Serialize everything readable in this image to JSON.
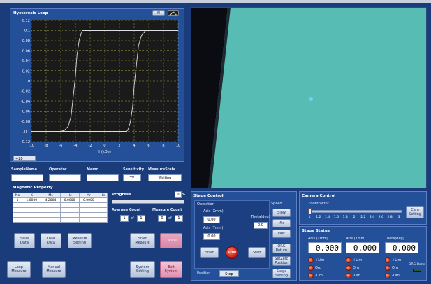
{
  "hysteresis": {
    "title": "Hysteresis Loop",
    "y_ticks": [
      "0.12",
      "0.1",
      "0.08",
      "0.06",
      "0.04",
      "0.02",
      "0",
      "-0.02",
      "-0.04",
      "-0.06",
      "-0.08",
      "-0.1",
      "-0.12"
    ],
    "x_ticks": [
      "-10",
      "-8",
      "-6",
      "-4",
      "-2",
      "0",
      "2",
      "4",
      "6",
      "8",
      "10"
    ],
    "xlabel": "H(kOe)",
    "zoom": "+28"
  },
  "chart_data": {
    "type": "line",
    "title": "Hysteresis Loop",
    "xlabel": "H(kOe)",
    "ylabel": "",
    "xlim": [
      -10,
      10
    ],
    "ylim": [
      -0.12,
      0.12
    ],
    "grid": true,
    "series": [
      {
        "x": [
          -10,
          -7,
          -6,
          -5.5,
          -5,
          -4.6,
          -4.3,
          -4,
          -3.8,
          -3.5,
          -3.2,
          -3,
          -2.5,
          -2,
          0,
          10
        ],
        "y": [
          -0.1,
          -0.1,
          -0.1,
          -0.098,
          -0.09,
          -0.07,
          -0.03,
          0.01,
          0.05,
          0.08,
          0.095,
          0.1,
          0.1,
          0.1,
          0.1,
          0.1
        ]
      },
      {
        "x": [
          10,
          7,
          6,
          5.5,
          5,
          4.6,
          4.3,
          4,
          3.8,
          3.5,
          3.2,
          3,
          2.5,
          2,
          0,
          -10
        ],
        "y": [
          0.1,
          0.1,
          0.1,
          0.098,
          0.09,
          0.07,
          0.03,
          -0.01,
          -0.05,
          -0.08,
          -0.095,
          -0.1,
          -0.1,
          -0.1,
          -0.1,
          -0.1
        ]
      }
    ]
  },
  "info": {
    "sample_label": "SampleName",
    "operator_label": "Operator",
    "memo_label": "Memo",
    "sensitivity_label": "Sensitivity",
    "sensitivity_value": "TV",
    "measure_state_label": "MeasureState",
    "measure_state_value": "Waiting"
  },
  "magnetic": {
    "title": "Magnetic Property",
    "headers": [
      "No",
      "K",
      "Ms",
      "Hc",
      "Mr",
      "Hk"
    ],
    "row": [
      "1",
      "1.0000",
      "4.2004",
      "0.0000",
      "0.0000",
      ""
    ],
    "progress_label": "Progress",
    "progress_value": "0",
    "progress_unit": "%",
    "avg_count_label": "Average Count",
    "avg_count_value": "1",
    "avg_of": "of",
    "avg_total": "1",
    "measure_count_label": "Measure Count",
    "measure_count_value": "0",
    "measure_of": "of",
    "measure_total": "1"
  },
  "buttons": {
    "save_data": "Save\nData",
    "load_data": "Load\nData",
    "measure_setting": "Measure\nSetting",
    "start_measure": "Start\nMeasure",
    "cancel": "Cancel",
    "loop_measure": "Loop\nMeasure",
    "manual_measure": "Manual\nMeasure",
    "system_setting": "System\nSetting",
    "exit": "Exit\nSystem"
  },
  "stage": {
    "title": "Stage Control",
    "operation_label": "Operation",
    "acis_mm_label_1": "Acis (Xmm)",
    "acis_mm_value_1": "0.00",
    "acis_mm_label_2": "Acis (Ymm)",
    "acis_mm_value_2": "0.00",
    "theta_label": "Theta(deg)",
    "theta_value": "0.0",
    "start_left": "Start",
    "stop": "STOP",
    "start_right": "Start",
    "speed_label": "Speed",
    "speed_slow": "Slow",
    "speed_mid": "Mid",
    "speed_fast": "Fast",
    "org_return": "ORG\nReturn",
    "setzero": "SetZero\nPosition",
    "stage_setting": "Stage\nSetting",
    "tab_position": "Position",
    "tab_step": "Step"
  },
  "camera": {
    "title": "Camera Control",
    "zoom_label": "ZoomFactor",
    "scale": [
      "1",
      "1.2",
      "1.4",
      "1.6",
      "1.8",
      "2",
      "2.2",
      "2.4",
      "2.6",
      "2.8",
      "3"
    ],
    "setting": "Cam\nSetting"
  },
  "stage_status": {
    "title": "Stage Status",
    "acis_x_label": "Acis (Xmm)",
    "acis_x_value": "0.000",
    "acis_y_label": "Acis (Ymm)",
    "acis_y_value": "0.000",
    "theta_label": "Theta(deg)",
    "theta_value": "0.000",
    "plus_lim": "+Lim",
    "org": "Org",
    "minus_lim": "-Lim",
    "org_done": "ORG Done"
  },
  "colors": {
    "background": "#1a3c7a",
    "panel": "#24509a",
    "camera_view": "#56bcb4",
    "plot_bg": "#1a1a1a",
    "plot_line": "#dddddd",
    "grid": "#c8c84a"
  }
}
